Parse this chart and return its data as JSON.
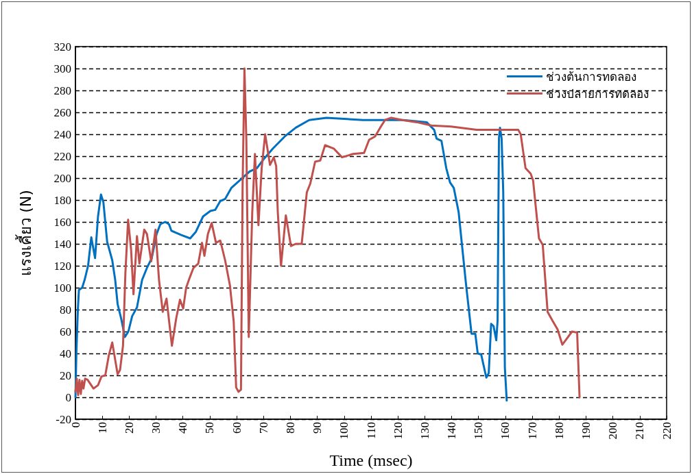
{
  "chart_data": {
    "type": "line",
    "xlabel": "Time (msec)",
    "ylabel": "แรงเคี้ยว (N)",
    "xlim": [
      0,
      220
    ],
    "xticks": [
      0,
      10,
      20,
      30,
      40,
      50,
      60,
      70,
      80,
      90,
      100,
      110,
      120,
      130,
      140,
      150,
      160,
      170,
      180,
      190,
      200,
      210,
      220
    ],
    "ylim": [
      -20,
      320
    ],
    "yticks": [
      -20,
      0,
      20,
      40,
      60,
      80,
      100,
      120,
      140,
      160,
      180,
      200,
      220,
      240,
      260,
      280,
      300,
      320
    ],
    "grid": "y",
    "legend": "top right",
    "marker": "none",
    "line_style": "solid",
    "series": [
      {
        "name": "ช่วงต้นการทดลอง",
        "color": "#0070c0",
        "x": [
          0,
          0.36,
          0.9,
          1.3,
          2.5,
          3.4,
          4.7,
          5.9,
          7.3,
          8.4,
          9.5,
          10.4,
          11.8,
          13.7,
          14.8,
          15.7,
          17,
          18.4,
          19.7,
          21.1,
          22.9,
          24.8,
          26.6,
          28.4,
          30.2,
          31.6,
          33.4,
          34.8,
          35.7,
          39.4,
          42.7,
          44.8,
          47.5,
          50.2,
          52,
          53.9,
          55.7,
          58,
          61.2,
          64.8,
          67.5,
          70.3,
          73.5,
          77.9,
          82,
          87,
          93.4,
          100,
          107,
          114,
          122,
          130.7,
          133.5,
          134.4,
          136.2,
          138,
          139.4,
          140.8,
          142.6,
          143.8,
          145.4,
          147.4,
          148.8,
          149.7,
          151,
          152.9,
          153.8,
          154.7,
          155.6,
          156.6,
          157.1,
          157.6,
          158,
          158.6,
          159.2,
          159.8,
          160.5
        ],
        "values": [
          0,
          42,
          80,
          98,
          100,
          107,
          120,
          146,
          127,
          165,
          185,
          178,
          142,
          125,
          107,
          85,
          72,
          55,
          60,
          74,
          82,
          107,
          118,
          127,
          149,
          158,
          160,
          158,
          152,
          148,
          145,
          151,
          165,
          170,
          171,
          179,
          181,
          191,
          198,
          206,
          209,
          218,
          227,
          238,
          246,
          253,
          255,
          254,
          253,
          253,
          253,
          251,
          244,
          236,
          234,
          209,
          196,
          191,
          169,
          140,
          102,
          58,
          58,
          40,
          39,
          18,
          22,
          67,
          65,
          52,
          70,
          236,
          246,
          236,
          187,
          27,
          -3
        ]
      },
      {
        "name": "ช่วงปลายการทดลอง",
        "color": "#c0504d",
        "x": [
          0,
          0.5,
          1,
          1.5,
          2,
          2.5,
          3,
          3.6,
          4.5,
          6.7,
          8.4,
          9.7,
          11.1,
          12.4,
          13.7,
          14.8,
          15.7,
          16.6,
          17.7,
          18.6,
          19.6,
          20.7,
          21.6,
          22.9,
          23.8,
          25.6,
          26.6,
          28.2,
          29.8,
          31.1,
          32.5,
          33.9,
          35.9,
          37.5,
          38.9,
          40.1,
          41.2,
          42.5,
          43.9,
          45.7,
          47.1,
          48,
          49.3,
          50.7,
          52.3,
          53.9,
          55.7,
          57.5,
          58.9,
          59.8,
          60.7,
          61.6,
          62.2,
          62.9,
          63.6,
          64.5,
          65.8,
          66.8,
          68.1,
          69.3,
          70.6,
          72.4,
          73.8,
          74.7,
          75.3,
          76.5,
          78.3,
          80.2,
          82,
          84.2,
          86.1,
          87.4,
          89.2,
          91.1,
          92.9,
          96.1,
          99.2,
          103.3,
          107.4,
          109.3,
          111.5,
          113.4,
          115.2,
          117.5,
          121.6,
          127,
          132.5,
          139.8,
          149.3,
          158.4,
          164.8,
          165.7,
          167.5,
          169.4,
          170.3,
          172.5,
          173.9,
          175.7,
          177.5,
          179.4,
          181.2,
          183,
          184.8,
          186.7,
          187.6
        ],
        "values": [
          5,
          17,
          2,
          16,
          3,
          15,
          8,
          17,
          16,
          8,
          11,
          19,
          20,
          38,
          50,
          34,
          21,
          25,
          47,
          114,
          162,
          135,
          94,
          147,
          122,
          153,
          149,
          124,
          153,
          107,
          78,
          90,
          47,
          72,
          89,
          81,
          100,
          109,
          118,
          122,
          141,
          129,
          149,
          159,
          141,
          143,
          125,
          102,
          69,
          9,
          5,
          7,
          191,
          300,
          235,
          55,
          169,
          222,
          157,
          209,
          240,
          212,
          219,
          211,
          169,
          120,
          166,
          138,
          140,
          140,
          187,
          195,
          215,
          216,
          230,
          227,
          219,
          222,
          223,
          235,
          238,
          246,
          253,
          255,
          253,
          251,
          248,
          247,
          244,
          244,
          244,
          240,
          209,
          204,
          198,
          145,
          139,
          78,
          70,
          62,
          48,
          54,
          60,
          59,
          0
        ]
      }
    ]
  }
}
